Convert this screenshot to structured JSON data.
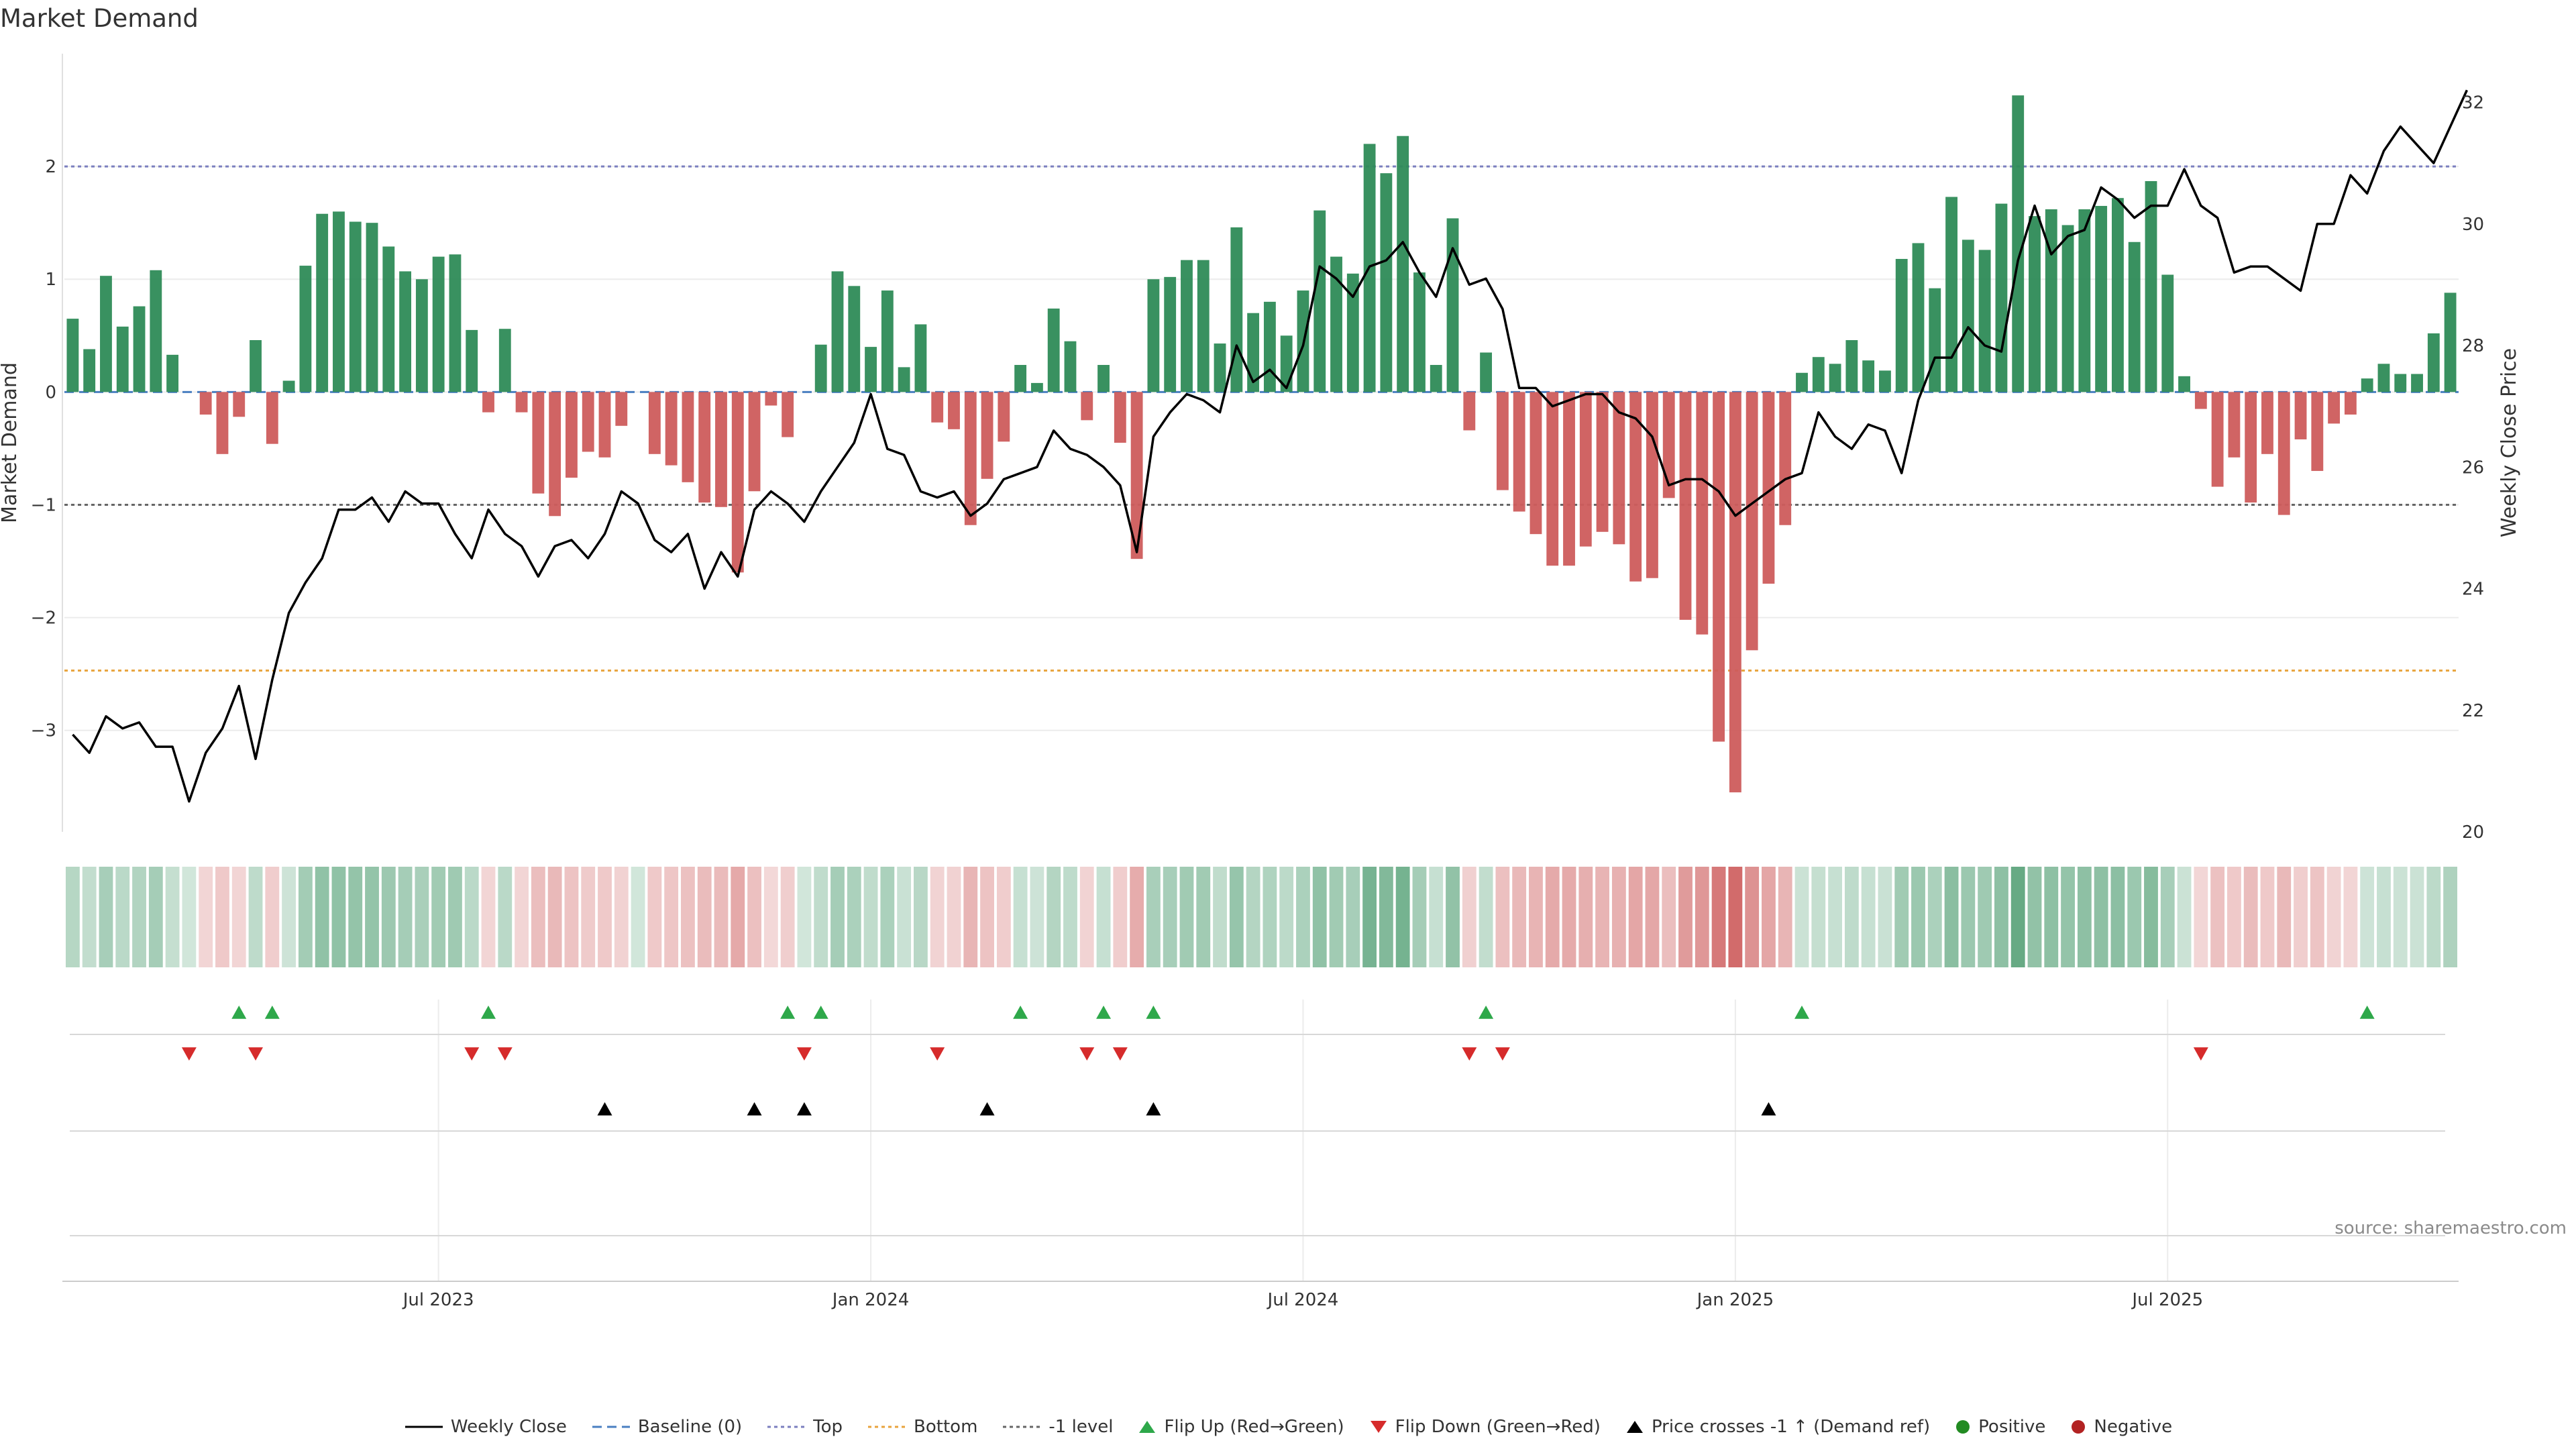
{
  "chart_data": {
    "type": "bar+line",
    "title": "Market Demand",
    "ylabel_left": "Market Demand",
    "ylabel_right": "Weekly Close Price",
    "ylim_left": [
      -3.9,
      3.0
    ],
    "ylim_right": [
      20,
      32.8
    ],
    "left_ticks": [
      {
        "v": 2,
        "t": "2"
      },
      {
        "v": 1,
        "t": "1"
      },
      {
        "v": 0,
        "t": "0"
      },
      {
        "v": -1,
        "t": "−1"
      },
      {
        "v": -2,
        "t": "−2"
      },
      {
        "v": -3,
        "t": "−3"
      }
    ],
    "right_ticks": [
      {
        "v": 20,
        "t": "20"
      },
      {
        "v": 22,
        "t": "22"
      },
      {
        "v": 24,
        "t": "24"
      },
      {
        "v": 26,
        "t": "26"
      },
      {
        "v": 28,
        "t": "28"
      },
      {
        "v": 30,
        "t": "30"
      },
      {
        "v": 32,
        "t": "32"
      }
    ],
    "x_ticks": [
      {
        "i": 22.5,
        "t": "Jul 2023"
      },
      {
        "i": 48.5,
        "t": "Jan 2024"
      },
      {
        "i": 74.5,
        "t": "Jul 2024"
      },
      {
        "i": 100.5,
        "t": "Jan 2025"
      },
      {
        "i": 126.5,
        "t": "Jul 2025"
      }
    ],
    "levels": {
      "top": 2.0,
      "bottom": -2.47,
      "minus_one": -1.0,
      "baseline": 0
    },
    "demand": [
      0.65,
      0.38,
      1.03,
      0.58,
      0.76,
      1.08,
      0.33,
      0,
      -0.2,
      -0.55,
      -0.22,
      0.46,
      -0.46,
      0.1,
      1.12,
      1.58,
      1.6,
      1.51,
      1.5,
      1.29,
      1.07,
      1.0,
      1.2,
      1.22,
      0.55,
      -0.18,
      0.56,
      -0.18,
      -0.9,
      -1.1,
      -0.76,
      -0.53,
      -0.58,
      -0.3,
      0,
      -0.55,
      -0.65,
      -0.8,
      -0.98,
      -1.02,
      -1.6,
      -0.88,
      -0.12,
      -0.4,
      0,
      0.42,
      1.07,
      0.94,
      0.4,
      0.9,
      0.22,
      0.6,
      -0.27,
      -0.33,
      -1.18,
      -0.77,
      -0.44,
      0.24,
      0.08,
      0.74,
      0.45,
      -0.25,
      0.24,
      -0.45,
      -1.48,
      1.0,
      1.02,
      1.17,
      1.17,
      0.43,
      1.46,
      0.7,
      0.8,
      0.5,
      0.9,
      1.61,
      1.2,
      1.05,
      2.2,
      1.94,
      2.27,
      1.06,
      0.24,
      1.54,
      -0.34,
      0.35,
      -0.87,
      -1.06,
      -1.26,
      -1.54,
      -1.54,
      -1.37,
      -1.24,
      -1.35,
      -1.68,
      -1.65,
      -0.94,
      -2.02,
      -2.15,
      -3.1,
      -3.55,
      -2.29,
      -1.7,
      -1.18,
      0.17,
      0.31,
      0.25,
      0.46,
      0.28,
      0.19,
      1.18,
      1.32,
      0.92,
      1.73,
      1.35,
      1.26,
      1.67,
      2.63,
      1.56,
      1.62,
      1.48,
      1.62,
      1.65,
      1.72,
      1.33,
      1.87,
      1.04,
      0.14,
      -0.15,
      -0.84,
      -0.58,
      -0.98,
      -0.55,
      -1.09,
      -0.42,
      -0.7,
      -0.28,
      -0.2,
      0.12,
      0.25,
      0.16,
      0.16,
      0.52,
      0.88
    ],
    "close": [
      21.6,
      21.3,
      21.9,
      21.7,
      21.8,
      21.4,
      21.4,
      20.5,
      21.3,
      21.7,
      22.4,
      21.2,
      22.5,
      23.6,
      24.1,
      24.5,
      25.3,
      25.3,
      25.5,
      25.1,
      25.6,
      25.4,
      25.4,
      24.9,
      24.5,
      25.3,
      24.9,
      24.7,
      24.2,
      24.7,
      24.8,
      24.5,
      24.9,
      25.6,
      25.4,
      24.8,
      24.6,
      24.9,
      24.0,
      24.6,
      24.2,
      25.3,
      25.6,
      25.4,
      25.1,
      25.6,
      26.0,
      26.4,
      27.2,
      26.3,
      26.2,
      25.6,
      25.5,
      25.6,
      25.2,
      25.4,
      25.8,
      25.9,
      26.0,
      26.6,
      26.3,
      26.2,
      26.0,
      25.7,
      24.6,
      26.5,
      26.9,
      27.2,
      27.1,
      26.9,
      28.0,
      27.4,
      27.6,
      27.3,
      28.0,
      29.3,
      29.1,
      28.8,
      29.3,
      29.4,
      29.7,
      29.2,
      28.8,
      29.6,
      29.0,
      29.1,
      28.6,
      27.3,
      27.3,
      27.0,
      27.1,
      27.2,
      27.2,
      26.9,
      26.8,
      26.5,
      25.7,
      25.8,
      25.8,
      25.6,
      25.2,
      25.4,
      25.6,
      25.8,
      25.9,
      26.9,
      26.5,
      26.3,
      26.7,
      26.6,
      25.9,
      27.1,
      27.8,
      27.8,
      28.3,
      28.0,
      27.9,
      29.4,
      30.3,
      29.5,
      29.8,
      29.9,
      30.6,
      30.4,
      30.1,
      30.3,
      30.3,
      30.9,
      30.3,
      30.1,
      29.2,
      29.3,
      29.3,
      29.1,
      28.9,
      30.0,
      30.0,
      30.8,
      30.5,
      31.2,
      31.6,
      31.3,
      31.0,
      31.6,
      32.2
    ],
    "flip_up_idx": [
      10,
      12,
      25,
      43,
      45,
      57,
      62,
      65,
      85,
      104,
      138
    ],
    "flip_down_idx": [
      7,
      11,
      24,
      26,
      44,
      52,
      61,
      63,
      84,
      86,
      128
    ],
    "price_cross_idx": [
      32,
      41,
      44,
      55,
      65,
      102
    ],
    "legend": [
      "Weekly Close",
      "Baseline (0)",
      "Top",
      "Bottom",
      "-1 level",
      "Flip Up (Red→Green)",
      "Flip Down (Green→Red)",
      "Price crosses -1 ↑ (Demand ref)",
      "Positive",
      "Negative"
    ],
    "source": "source: sharemaestro.com"
  },
  "colors": {
    "positive": "#2e8b57",
    "negative": "#cd5c5c",
    "close_line": "#000000",
    "top_line": "#7b7fbf",
    "bottom_line": "#e8a33c",
    "minus_one_line": "#666666",
    "baseline": "#4a7fc1",
    "flip_up": "#2ea84a",
    "flip_down": "#d62b2b",
    "price_cross": "#000000",
    "positive_dot": "#228b22",
    "negative_dot": "#b22222"
  }
}
